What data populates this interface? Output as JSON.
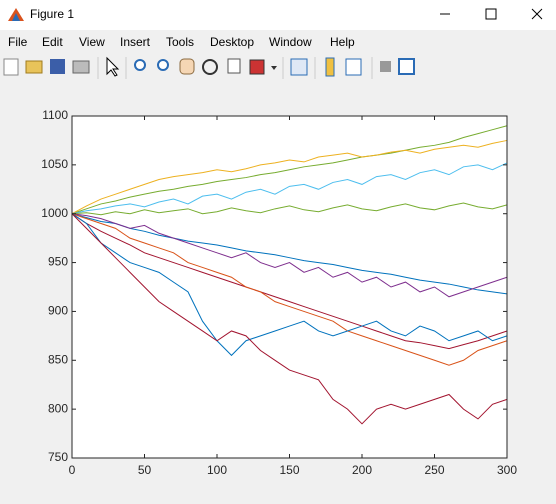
{
  "window": {
    "title": "Figure 1",
    "menu": [
      "File",
      "Edit",
      "View",
      "Insert",
      "Tools",
      "Desktop",
      "Window",
      "Help"
    ]
  },
  "chart_data": {
    "type": "line",
    "x": [
      0,
      10,
      20,
      30,
      40,
      50,
      60,
      70,
      80,
      90,
      100,
      110,
      120,
      130,
      140,
      150,
      160,
      170,
      180,
      190,
      200,
      210,
      220,
      230,
      240,
      250,
      260,
      270,
      280,
      290,
      300
    ],
    "xlim": [
      0,
      300
    ],
    "xticks": [
      0,
      50,
      100,
      150,
      200,
      250,
      300
    ],
    "ylim": [
      750,
      1100
    ],
    "yticks": [
      750,
      800,
      850,
      900,
      950,
      1000,
      1050,
      1100
    ],
    "series": [
      {
        "color": "#77AC30",
        "values": [
          1000,
          1005,
          1010,
          1013,
          1017,
          1020,
          1023,
          1025,
          1028,
          1030,
          1033,
          1035,
          1037,
          1040,
          1042,
          1045,
          1048,
          1050,
          1052,
          1055,
          1058,
          1060,
          1062,
          1065,
          1068,
          1070,
          1073,
          1078,
          1082,
          1086,
          1090
        ]
      },
      {
        "color": "#EDB120",
        "values": [
          1000,
          1008,
          1015,
          1020,
          1025,
          1030,
          1035,
          1038,
          1040,
          1042,
          1045,
          1043,
          1046,
          1050,
          1052,
          1055,
          1053,
          1058,
          1060,
          1062,
          1058,
          1060,
          1063,
          1065,
          1062,
          1066,
          1068,
          1070,
          1068,
          1072,
          1075
        ]
      },
      {
        "color": "#4DBEEE",
        "values": [
          1000,
          1003,
          1005,
          1008,
          1010,
          1007,
          1012,
          1015,
          1010,
          1018,
          1020,
          1015,
          1022,
          1025,
          1020,
          1028,
          1030,
          1025,
          1032,
          1035,
          1030,
          1038,
          1040,
          1035,
          1042,
          1045,
          1040,
          1048,
          1050,
          1045,
          1052
        ]
      },
      {
        "color": "#77AC30",
        "values": [
          1000,
          1001,
          999,
          1002,
          1000,
          1004,
          1001,
          1003,
          1005,
          1000,
          1002,
          1006,
          1003,
          1001,
          1005,
          1008,
          1004,
          1002,
          1006,
          1009,
          1005,
          1003,
          1007,
          1010,
          1006,
          1004,
          1008,
          1011,
          1007,
          1005,
          1009
        ]
      },
      {
        "color": "#0072BD",
        "values": [
          1000,
          996,
          992,
          990,
          985,
          982,
          978,
          975,
          972,
          970,
          968,
          965,
          962,
          960,
          958,
          955,
          952,
          950,
          948,
          945,
          942,
          940,
          938,
          935,
          932,
          930,
          928,
          925,
          922,
          920,
          918
        ]
      },
      {
        "color": "#7E2F8E",
        "values": [
          1000,
          998,
          995,
          990,
          985,
          988,
          980,
          975,
          970,
          965,
          960,
          955,
          960,
          950,
          945,
          950,
          940,
          945,
          935,
          940,
          930,
          935,
          925,
          930,
          920,
          925,
          915,
          920,
          925,
          930,
          935
        ]
      },
      {
        "color": "#A2142F",
        "values": [
          1000,
          990,
          982,
          975,
          968,
          960,
          955,
          950,
          945,
          940,
          935,
          930,
          925,
          920,
          915,
          910,
          905,
          900,
          895,
          890,
          885,
          880,
          875,
          870,
          868,
          865,
          862,
          866,
          870,
          875,
          880
        ]
      },
      {
        "color": "#D95319",
        "values": [
          1000,
          995,
          990,
          985,
          975,
          970,
          965,
          960,
          950,
          945,
          940,
          935,
          925,
          920,
          910,
          905,
          900,
          895,
          890,
          880,
          875,
          870,
          865,
          860,
          855,
          850,
          845,
          850,
          860,
          865,
          870
        ]
      },
      {
        "color": "#0072BD",
        "values": [
          1000,
          990,
          970,
          960,
          950,
          945,
          940,
          930,
          920,
          890,
          870,
          855,
          870,
          875,
          880,
          885,
          890,
          880,
          875,
          880,
          885,
          890,
          880,
          875,
          885,
          880,
          870,
          875,
          880,
          870,
          875
        ]
      },
      {
        "color": "#A2142F",
        "values": [
          1000,
          985,
          970,
          955,
          940,
          925,
          910,
          900,
          890,
          880,
          870,
          880,
          875,
          860,
          850,
          840,
          835,
          830,
          810,
          800,
          785,
          800,
          805,
          800,
          805,
          810,
          815,
          800,
          790,
          805,
          810
        ]
      }
    ]
  }
}
